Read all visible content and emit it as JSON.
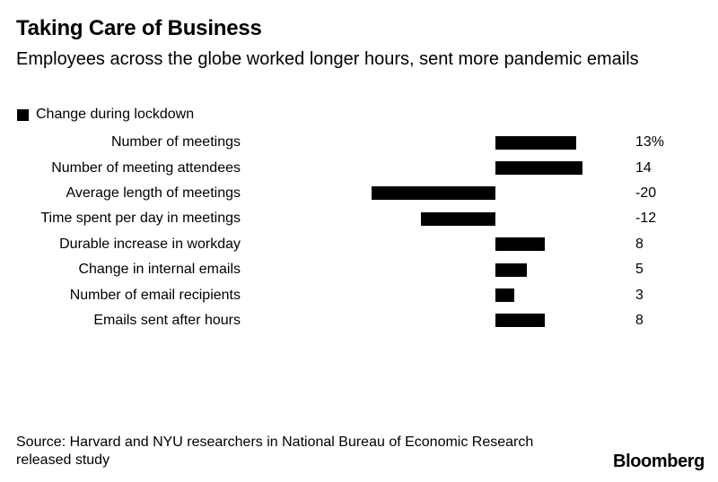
{
  "header": {
    "title": "Taking Care of Business",
    "subtitle": "Employees across the globe worked longer hours, sent more pandemic emails"
  },
  "legend": {
    "label": "Change during lockdown",
    "swatch_color": "#000000"
  },
  "chart_data": {
    "type": "bar",
    "orientation": "horizontal",
    "title": "Taking Care of Business",
    "subtitle": "Employees across the globe worked longer hours, sent more pandemic emails",
    "series_name": "Change during lockdown",
    "categories": [
      "Number of meetings",
      "Number of meeting attendees",
      "Average length of meetings",
      "Time spent per day in meetings",
      "Durable increase in workday",
      "Change in internal emails",
      "Number of email recipients",
      "Emails sent after hours"
    ],
    "values": [
      13,
      14,
      -20,
      -12,
      8,
      5,
      3,
      8
    ],
    "value_labels": [
      "13%",
      "14",
      "-20",
      "-12",
      "8",
      "5",
      "3",
      "8"
    ],
    "unit": "%",
    "bar_color": "#000000",
    "xlim": [
      -20,
      14
    ],
    "grid": false,
    "legend_position": "top-left",
    "value_label_position": "right-column"
  },
  "footer": {
    "source_line1": "Source: Harvard and NYU researchers in National Bureau of Economic Research",
    "source_line2": "released study",
    "brand": "Bloomberg"
  }
}
